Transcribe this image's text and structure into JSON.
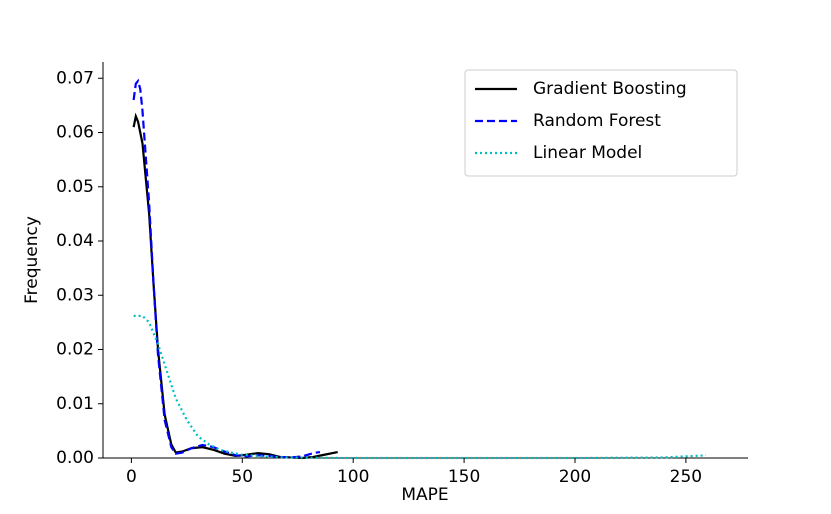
{
  "chart_data": {
    "type": "line",
    "xlabel": "MAPE",
    "ylabel": "Frequency",
    "xlim": [
      -12.8,
      278
    ],
    "ylim": [
      0,
      0.073
    ],
    "xticks": [
      0,
      50,
      100,
      150,
      200,
      250
    ],
    "yticks": [
      {
        "value": 0,
        "label": "0.00"
      },
      {
        "value": 0.01,
        "label": "0.01"
      },
      {
        "value": 0.02,
        "label": "0.02"
      },
      {
        "value": 0.03,
        "label": "0.03"
      },
      {
        "value": 0.04,
        "label": "0.04"
      },
      {
        "value": 0.05,
        "label": "0.05"
      },
      {
        "value": 0.06,
        "label": "0.06"
      },
      {
        "value": 0.07,
        "label": "0.07"
      }
    ],
    "legend": "upper right",
    "series": [
      {
        "name": "Gradient Boosting",
        "color": "#000000",
        "linestyle": "solid",
        "x": [
          1,
          2,
          3,
          5,
          8,
          10,
          12,
          15,
          18,
          20,
          23,
          27,
          32,
          37,
          42,
          47,
          52,
          57,
          62,
          67,
          72,
          77,
          82,
          87,
          93
        ],
        "values": [
          0.061,
          0.063,
          0.062,
          0.058,
          0.045,
          0.032,
          0.02,
          0.008,
          0.0025,
          0.001,
          0.0012,
          0.0018,
          0.002,
          0.0015,
          0.0008,
          0.0004,
          0.0006,
          0.0009,
          0.0007,
          0.0002,
          0.0001,
          0.0,
          0.0002,
          0.0006,
          0.0011
        ]
      },
      {
        "name": "Random Forest",
        "color": "#0000ff",
        "linestyle": "dashed",
        "x": [
          1,
          2,
          3,
          4,
          5,
          8,
          10,
          12,
          15,
          18,
          20,
          23,
          27,
          32,
          37,
          42,
          47,
          52,
          57,
          62,
          67,
          72,
          77,
          82,
          85
        ],
        "values": [
          0.066,
          0.069,
          0.0695,
          0.068,
          0.064,
          0.047,
          0.032,
          0.019,
          0.007,
          0.002,
          0.0008,
          0.001,
          0.0018,
          0.0024,
          0.002,
          0.0012,
          0.0005,
          0.0003,
          0.0005,
          0.0004,
          0.0002,
          0.0001,
          0.0003,
          0.0009,
          0.0011
        ]
      },
      {
        "name": "Linear Model",
        "color": "#00bfbf",
        "linestyle": "dotted",
        "x": [
          1,
          5,
          8,
          12,
          16,
          20,
          25,
          30,
          35,
          40,
          45,
          50,
          60,
          70,
          80,
          100,
          150,
          200,
          240,
          250,
          259
        ],
        "values": [
          0.0262,
          0.0262,
          0.025,
          0.021,
          0.016,
          0.011,
          0.007,
          0.004,
          0.0025,
          0.0015,
          0.001,
          0.0006,
          0.0003,
          0.0001,
          5e-05,
          0,
          0,
          0,
          0.0001,
          0.0003,
          0.0005
        ]
      }
    ]
  }
}
